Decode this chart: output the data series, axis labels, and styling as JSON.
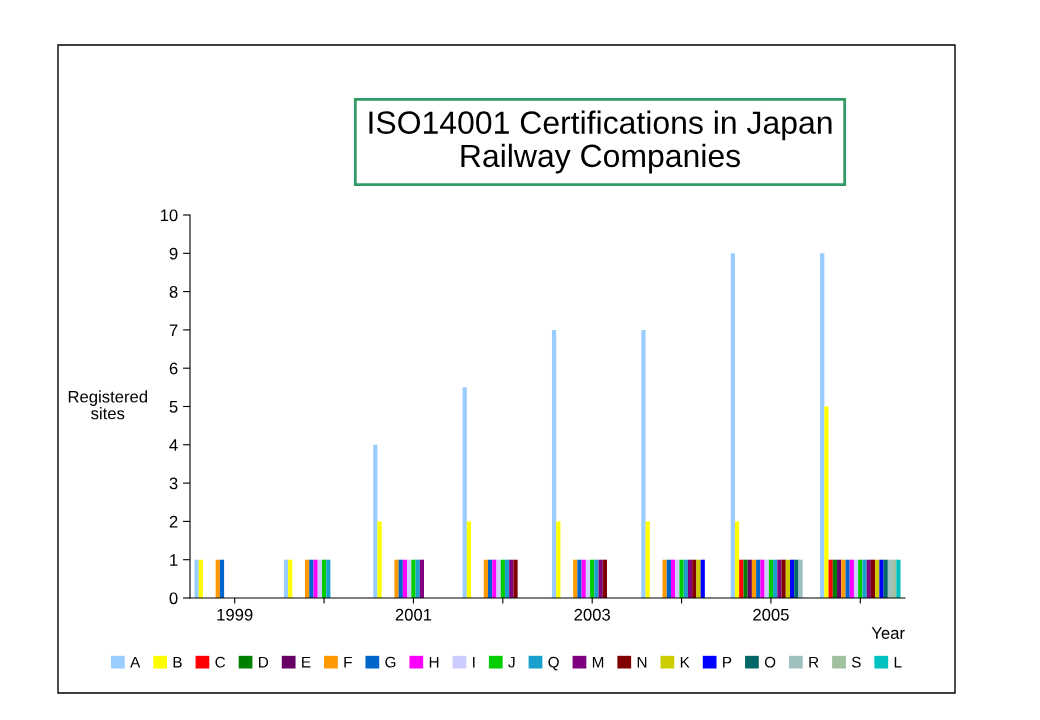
{
  "chart_data": {
    "type": "bar",
    "title": "ISO14001 Certifications in Japan Railway Companies",
    "xlabel": "Year",
    "ylabel": "Registered sites",
    "categories": [
      "1999",
      null,
      "2001",
      null,
      "2003",
      null,
      "2005",
      null
    ],
    "series": [
      {
        "name": "A",
        "color": "#99ccff",
        "values": [
          1,
          1,
          4,
          5.5,
          7,
          7,
          9,
          9
        ]
      },
      {
        "name": "B",
        "color": "#ffff00",
        "values": [
          1,
          1,
          2,
          2,
          2,
          2,
          2,
          5
        ]
      },
      {
        "name": "C",
        "color": "#ff0000",
        "values": [
          0,
          0,
          0,
          0,
          0,
          0,
          1,
          1
        ]
      },
      {
        "name": "D",
        "color": "#008000",
        "values": [
          0,
          0,
          0,
          0,
          0,
          0,
          1,
          1
        ]
      },
      {
        "name": "E",
        "color": "#660066",
        "values": [
          0,
          0,
          0,
          0,
          0,
          0,
          1,
          1
        ]
      },
      {
        "name": "F",
        "color": "#ff9900",
        "values": [
          1,
          1,
          1,
          1,
          1,
          1,
          1,
          1
        ]
      },
      {
        "name": "G",
        "color": "#0066cc",
        "values": [
          1,
          1,
          1,
          1,
          1,
          1,
          1,
          1
        ]
      },
      {
        "name": "H",
        "color": "#ff00ff",
        "values": [
          0,
          1,
          1,
          1,
          1,
          1,
          1,
          1
        ]
      },
      {
        "name": "I",
        "color": "#ccccff",
        "values": [
          0,
          1,
          1,
          1,
          1,
          1,
          1,
          1
        ]
      },
      {
        "name": "J",
        "color": "#00cc00",
        "values": [
          0,
          1,
          1,
          1,
          1,
          1,
          1,
          1
        ]
      },
      {
        "name": "Q",
        "color": "#1aa0cc",
        "values": [
          0,
          1,
          1,
          1,
          1,
          1,
          1,
          1
        ]
      },
      {
        "name": "M",
        "color": "#800080",
        "values": [
          0,
          0,
          1,
          1,
          1,
          1,
          1,
          1
        ]
      },
      {
        "name": "N",
        "color": "#800000",
        "values": [
          0,
          0,
          0,
          1,
          1,
          1,
          1,
          1
        ]
      },
      {
        "name": "K",
        "color": "#cccc00",
        "values": [
          0,
          0,
          0,
          0,
          0,
          1,
          1,
          1
        ]
      },
      {
        "name": "P",
        "color": "#0000ff",
        "values": [
          0,
          0,
          0,
          0,
          0,
          1,
          1,
          1
        ]
      },
      {
        "name": "O",
        "color": "#006666",
        "values": [
          0,
          0,
          0,
          0,
          0,
          0,
          1,
          1
        ]
      },
      {
        "name": "R",
        "color": "#a0c0c0",
        "values": [
          0,
          0,
          0,
          0,
          0,
          0,
          1,
          1
        ]
      },
      {
        "name": "S",
        "color": "#a0c0a0",
        "values": [
          0,
          0,
          0,
          0,
          0,
          0,
          0,
          1
        ]
      },
      {
        "name": "L",
        "color": "#00c0c0",
        "values": [
          0,
          0,
          0,
          0,
          0,
          0,
          0,
          1
        ]
      }
    ],
    "ylim": [
      0,
      10
    ],
    "yticks": [
      0,
      1,
      2,
      3,
      4,
      5,
      6,
      7,
      8,
      9,
      10
    ],
    "legend": "bottom"
  }
}
